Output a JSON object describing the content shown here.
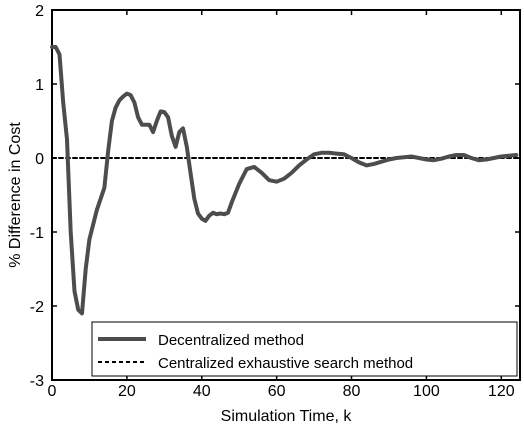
{
  "chart_data": {
    "type": "line",
    "title": "",
    "xlabel": "Simulation Time, k",
    "ylabel": "% Difference in Cost",
    "xlim": [
      0,
      125
    ],
    "ylim": [
      -3,
      2
    ],
    "xticks": [
      0,
      20,
      40,
      60,
      80,
      100,
      120
    ],
    "yticks": [
      -3,
      -2,
      -1,
      0,
      1,
      2
    ],
    "grid": false,
    "legend_position": "bottom-right",
    "series": [
      {
        "name": "Decentralized method",
        "color": "#4d4d4d",
        "style": "solid",
        "x": [
          0,
          1,
          2,
          3,
          4,
          5,
          6,
          7,
          8,
          9,
          10,
          12,
          14,
          15,
          16,
          17,
          18,
          19,
          20,
          21,
          22,
          23,
          24,
          25,
          26,
          27,
          28,
          29,
          30,
          31,
          32,
          33,
          34,
          35,
          36,
          37,
          38,
          39,
          40,
          41,
          42,
          43,
          44,
          45,
          46,
          47,
          48,
          50,
          52,
          54,
          56,
          58,
          60,
          62,
          64,
          66,
          68,
          70,
          72,
          74,
          76,
          78,
          80,
          82,
          84,
          86,
          88,
          90,
          92,
          94,
          96,
          98,
          100,
          102,
          104,
          106,
          108,
          110,
          112,
          114,
          116,
          118,
          120,
          122,
          124
        ],
        "y": [
          1.5,
          1.5,
          1.4,
          0.75,
          0.25,
          -1.0,
          -1.8,
          -2.05,
          -2.1,
          -1.5,
          -1.1,
          -0.7,
          -0.4,
          0.1,
          0.5,
          0.68,
          0.78,
          0.83,
          0.87,
          0.85,
          0.75,
          0.55,
          0.45,
          0.45,
          0.45,
          0.35,
          0.5,
          0.63,
          0.62,
          0.55,
          0.3,
          0.15,
          0.35,
          0.4,
          0.15,
          -0.2,
          -0.55,
          -0.75,
          -0.82,
          -0.85,
          -0.78,
          -0.74,
          -0.76,
          -0.75,
          -0.76,
          -0.74,
          -0.6,
          -0.35,
          -0.15,
          -0.12,
          -0.2,
          -0.3,
          -0.32,
          -0.28,
          -0.2,
          -0.1,
          -0.02,
          0.05,
          0.07,
          0.07,
          0.06,
          0.05,
          0.0,
          -0.06,
          -0.1,
          -0.08,
          -0.05,
          -0.02,
          0.0,
          0.01,
          0.02,
          0.0,
          -0.02,
          -0.03,
          -0.01,
          0.02,
          0.04,
          0.04,
          0.0,
          -0.03,
          -0.02,
          0.0,
          0.02,
          0.03,
          0.04
        ]
      },
      {
        "name": "Centralized exhaustive search method",
        "color": "#000000",
        "style": "dashed",
        "x": [
          0,
          125
        ],
        "y": [
          0,
          0
        ]
      }
    ]
  }
}
